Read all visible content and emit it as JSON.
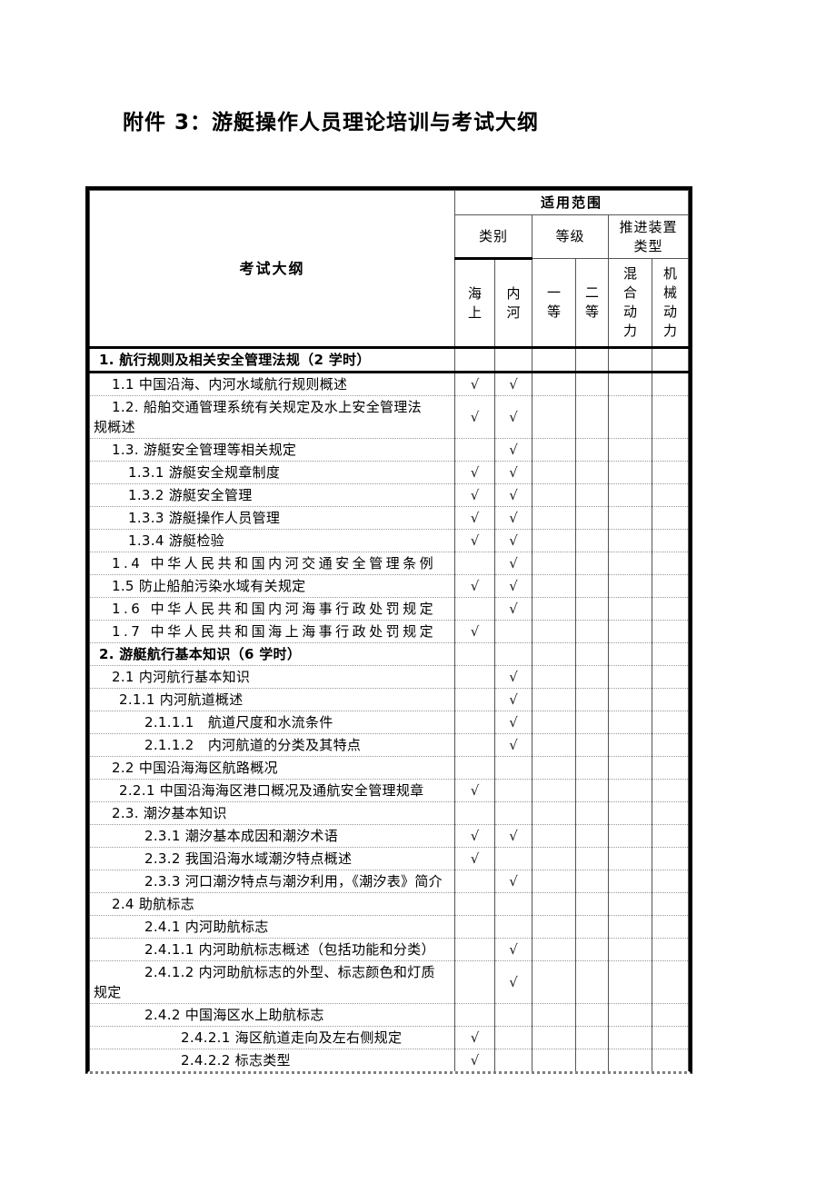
{
  "title": "附件 3：游艇操作人员理论培训与考试大纲",
  "table": {
    "header": {
      "exam_outline": "考试大纲",
      "scope": "适用范围",
      "groups": [
        {
          "label": "类别"
        },
        {
          "label": "等级"
        },
        {
          "label": "推进装置\n类型"
        }
      ],
      "columns": [
        {
          "label": "海\n上"
        },
        {
          "label": "内\n河"
        },
        {
          "label": "一\n等"
        },
        {
          "label": "二\n等"
        },
        {
          "label": "混\n合\n动\n力"
        },
        {
          "label": "机\n械\n动\n力"
        }
      ]
    },
    "check_symbol": "√",
    "rows": [
      {
        "text": "1. 航行规则及相关安全管理法规（2 学时）",
        "level": 0,
        "bold": true,
        "spread": false,
        "thick_bottom": true,
        "marks": [
          "",
          "",
          "",
          "",
          "",
          ""
        ]
      },
      {
        "text": "1.1 中国沿海、内河水域航行规则概述",
        "level": 1,
        "bold": false,
        "spread": false,
        "thick_bottom": false,
        "marks": [
          "√",
          "√",
          "",
          "",
          "",
          ""
        ]
      },
      {
        "text": "1.2. 船舶交通管理系统有关规定及水上安全管理法\n规概述",
        "level": 1,
        "bold": false,
        "spread": false,
        "thick_bottom": false,
        "marks": [
          "√",
          "√",
          "",
          "",
          "",
          ""
        ]
      },
      {
        "text": "1.3. 游艇安全管理等相关规定",
        "level": 1,
        "bold": false,
        "spread": false,
        "thick_bottom": false,
        "marks": [
          "",
          "√",
          "",
          "",
          "",
          ""
        ]
      },
      {
        "text": "1.3.1 游艇安全规章制度",
        "level": 3,
        "bold": false,
        "spread": false,
        "thick_bottom": false,
        "marks": [
          "√",
          "√",
          "",
          "",
          "",
          ""
        ]
      },
      {
        "text": "1.3.2 游艇安全管理",
        "level": 3,
        "bold": false,
        "spread": false,
        "thick_bottom": false,
        "marks": [
          "√",
          "√",
          "",
          "",
          "",
          ""
        ]
      },
      {
        "text": "1.3.3 游艇操作人员管理",
        "level": 3,
        "bold": false,
        "spread": false,
        "thick_bottom": false,
        "marks": [
          "√",
          "√",
          "",
          "",
          "",
          ""
        ]
      },
      {
        "text": "1.3.4 游艇检验",
        "level": 3,
        "bold": false,
        "spread": false,
        "thick_bottom": false,
        "marks": [
          "√",
          "√",
          "",
          "",
          "",
          ""
        ]
      },
      {
        "text": "1.4 中华人民共和国内河交通安全管理条例",
        "level": 1,
        "bold": false,
        "spread": true,
        "thick_bottom": false,
        "marks": [
          "",
          "√",
          "",
          "",
          "",
          ""
        ]
      },
      {
        "text": "1.5 防止船舶污染水域有关规定",
        "level": 1,
        "bold": false,
        "spread": false,
        "thick_bottom": false,
        "marks": [
          "√",
          "√",
          "",
          "",
          "",
          ""
        ]
      },
      {
        "text": "1.6 中华人民共和国内河海事行政处罚规定",
        "level": 1,
        "bold": false,
        "spread": true,
        "thick_bottom": false,
        "marks": [
          "",
          "√",
          "",
          "",
          "",
          ""
        ]
      },
      {
        "text": "1.7 中华人民共和国海上海事行政处罚规定",
        "level": 1,
        "bold": false,
        "spread": true,
        "thick_bottom": false,
        "marks": [
          "√",
          "",
          "",
          "",
          "",
          ""
        ]
      },
      {
        "text": "2. 游艇航行基本知识（6 学时）",
        "level": 0,
        "bold": true,
        "spread": false,
        "thick_bottom": false,
        "marks": [
          "",
          "",
          "",
          "",
          "",
          ""
        ]
      },
      {
        "text": "2.1 内河航行基本知识",
        "level": 1,
        "bold": false,
        "spread": false,
        "thick_bottom": false,
        "marks": [
          "",
          "√",
          "",
          "",
          "",
          ""
        ]
      },
      {
        "text": "2.1.1 内河航道概述",
        "level": 2,
        "bold": false,
        "spread": false,
        "thick_bottom": false,
        "marks": [
          "",
          "√",
          "",
          "",
          "",
          ""
        ]
      },
      {
        "text": "2.1.1.1　航道尺度和水流条件",
        "level": 4,
        "bold": false,
        "spread": false,
        "thick_bottom": false,
        "marks": [
          "",
          "√",
          "",
          "",
          "",
          ""
        ]
      },
      {
        "text": "2.1.1.2　内河航道的分类及其特点",
        "level": 4,
        "bold": false,
        "spread": false,
        "thick_bottom": false,
        "marks": [
          "",
          "√",
          "",
          "",
          "",
          ""
        ]
      },
      {
        "text": "2.2 中国沿海海区航路概况",
        "level": 1,
        "bold": false,
        "spread": false,
        "thick_bottom": false,
        "marks": [
          "",
          "",
          "",
          "",
          "",
          ""
        ]
      },
      {
        "text": "2.2.1 中国沿海海区港口概况及通航安全管理规章",
        "level": 2,
        "bold": false,
        "spread": false,
        "thick_bottom": false,
        "marks": [
          "√",
          "",
          "",
          "",
          "",
          ""
        ]
      },
      {
        "text": "2.3. 潮汐基本知识",
        "level": 1,
        "bold": false,
        "spread": false,
        "thick_bottom": false,
        "marks": [
          "",
          "",
          "",
          "",
          "",
          ""
        ]
      },
      {
        "text": "2.3.1 潮汐基本成因和潮汐术语",
        "level": 4,
        "bold": false,
        "spread": false,
        "thick_bottom": false,
        "marks": [
          "√",
          "√",
          "",
          "",
          "",
          ""
        ]
      },
      {
        "text": "2.3.2 我国沿海水域潮汐特点概述",
        "level": 4,
        "bold": false,
        "spread": false,
        "thick_bottom": false,
        "marks": [
          "√",
          "",
          "",
          "",
          "",
          ""
        ]
      },
      {
        "text": "2.3.3 河口潮汐特点与潮汐利用，《潮汐表》简介",
        "level": 4,
        "bold": false,
        "spread": false,
        "thick_bottom": false,
        "marks": [
          "",
          "√",
          "",
          "",
          "",
          ""
        ]
      },
      {
        "text": "2.4 助航标志",
        "level": 1,
        "bold": false,
        "spread": false,
        "thick_bottom": false,
        "marks": [
          "",
          "",
          "",
          "",
          "",
          ""
        ]
      },
      {
        "text": "2.4.1 内河助航标志",
        "level": 4,
        "bold": false,
        "spread": false,
        "thick_bottom": false,
        "marks": [
          "",
          "",
          "",
          "",
          "",
          ""
        ]
      },
      {
        "text": "2.4.1.1 内河助航标志概述（包括功能和分类）",
        "level": 4,
        "bold": false,
        "spread": false,
        "thick_bottom": false,
        "marks": [
          "",
          "√",
          "",
          "",
          "",
          ""
        ]
      },
      {
        "text": "2.4.1.2 内河助航标志的外型、标志颜色和灯质\n规定",
        "level": 4,
        "bold": false,
        "spread": false,
        "thick_bottom": false,
        "marks": [
          "",
          "√",
          "",
          "",
          "",
          ""
        ]
      },
      {
        "text": "2.4.2 中国海区水上助航标志",
        "level": 4,
        "bold": false,
        "spread": false,
        "thick_bottom": false,
        "marks": [
          "",
          "",
          "",
          "",
          "",
          ""
        ]
      },
      {
        "text": "2.4.2.1 海区航道走向及左右侧规定",
        "level": 5,
        "bold": false,
        "spread": false,
        "thick_bottom": false,
        "marks": [
          "√",
          "",
          "",
          "",
          "",
          ""
        ]
      },
      {
        "text": "2.4.2.2 标志类型",
        "level": 5,
        "bold": false,
        "spread": false,
        "thick_bottom": false,
        "marks": [
          "√",
          "",
          "",
          "",
          "",
          ""
        ]
      }
    ]
  }
}
